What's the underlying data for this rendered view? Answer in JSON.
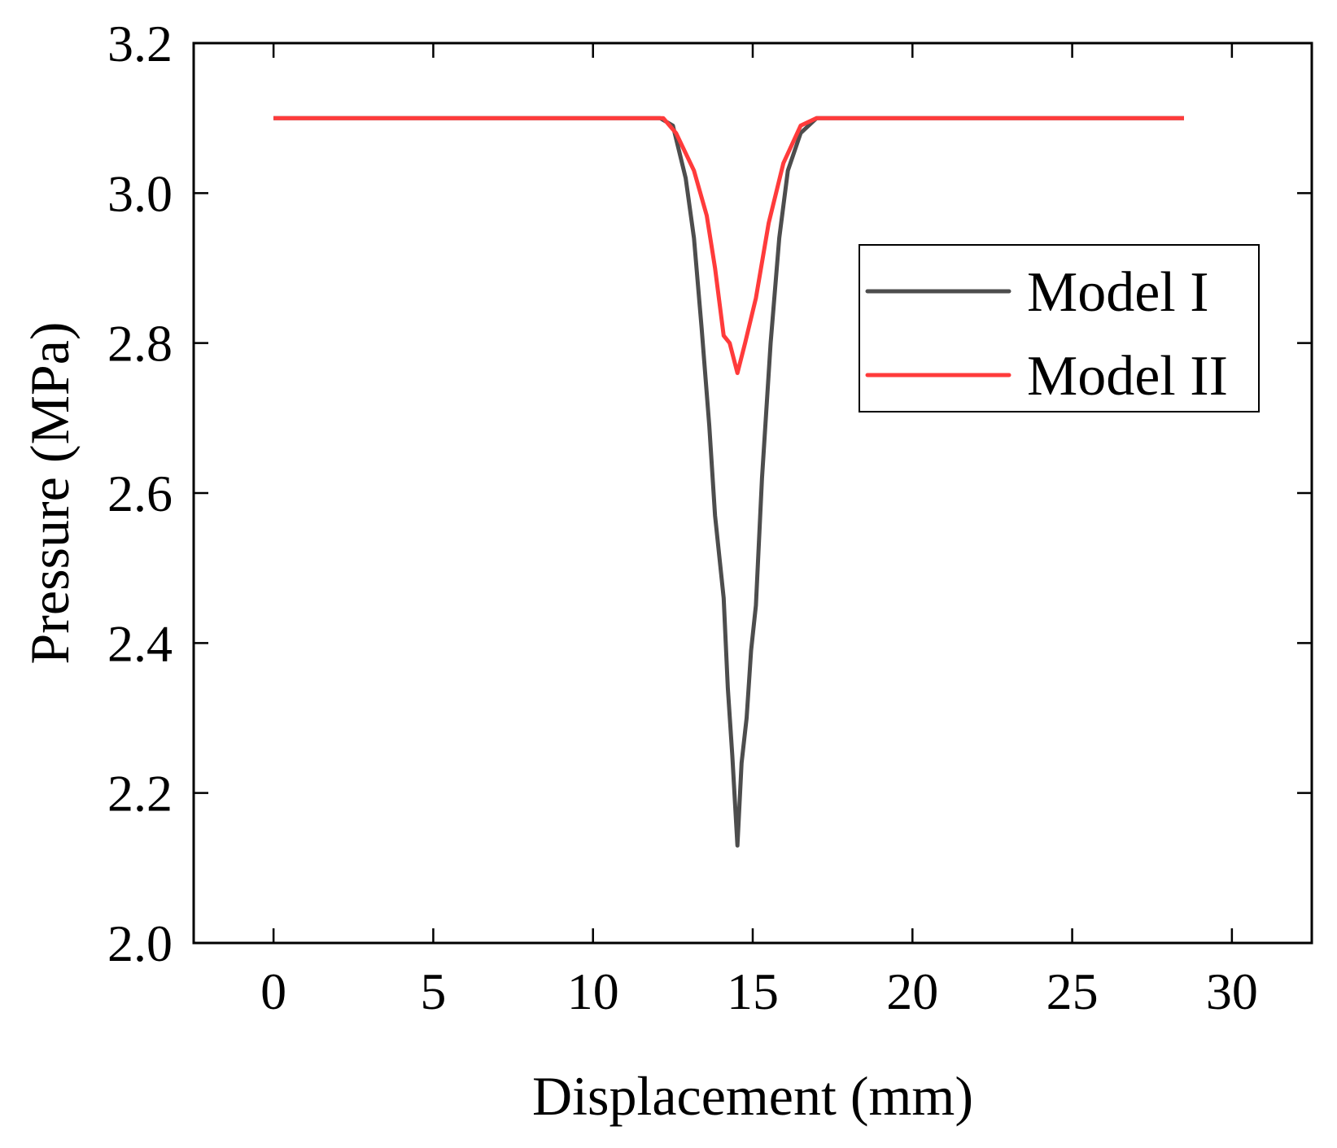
{
  "chart_data": {
    "type": "line",
    "title": "",
    "xlabel": "Displacement (mm)",
    "ylabel": "Pressure (MPa)",
    "xlim": [
      -2.5,
      32.5
    ],
    "ylim": [
      2.0,
      3.2
    ],
    "xticks": [
      0,
      5,
      10,
      15,
      20,
      25,
      30
    ],
    "xtick_labels": [
      "0",
      "5",
      "10",
      "15",
      "20",
      "25",
      "30"
    ],
    "yticks": [
      2.0,
      2.2,
      2.4,
      2.6,
      2.8,
      3.0,
      3.2
    ],
    "ytick_labels": [
      "2.0",
      "2.2",
      "2.4",
      "2.6",
      "2.8",
      "3.0",
      "3.2"
    ],
    "grid": false,
    "legend_position": "top-right",
    "series": [
      {
        "name": "Model I",
        "color": "#4d4d4d",
        "x": [
          0,
          12.1,
          12.5,
          12.9,
          13.16,
          13.4,
          13.64,
          13.82,
          14.09,
          14.22,
          14.36,
          14.52,
          14.65,
          14.81,
          14.95,
          15.1,
          15.29,
          15.56,
          15.83,
          16.1,
          16.5,
          17.0,
          28.5
        ],
        "y": [
          3.1,
          3.1,
          3.09,
          3.02,
          2.94,
          2.82,
          2.69,
          2.57,
          2.46,
          2.34,
          2.25,
          2.13,
          2.24,
          2.3,
          2.39,
          2.45,
          2.62,
          2.8,
          2.94,
          3.03,
          3.08,
          3.1,
          3.1
        ]
      },
      {
        "name": "Model II",
        "color": "#ff3b3b",
        "x": [
          0,
          12.2,
          12.6,
          13.16,
          13.56,
          13.82,
          14.09,
          14.28,
          14.52,
          14.76,
          15.1,
          15.5,
          15.96,
          16.5,
          17.0,
          28.5
        ],
        "y": [
          3.1,
          3.1,
          3.08,
          3.03,
          2.97,
          2.9,
          2.81,
          2.8,
          2.76,
          2.8,
          2.86,
          2.96,
          3.04,
          3.09,
          3.1,
          3.1
        ]
      }
    ]
  }
}
